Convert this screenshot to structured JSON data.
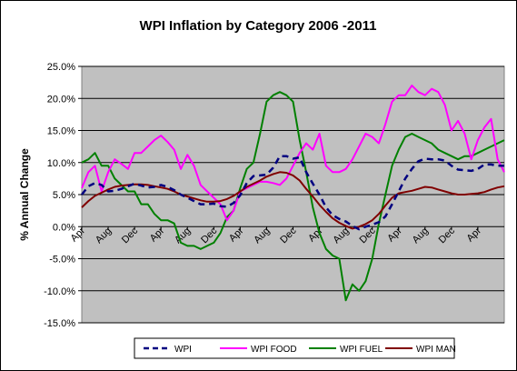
{
  "chart_data": {
    "type": "line",
    "title": "WPI Inflation by Category 2006 -2011",
    "ylabel": "% Annual Change",
    "xlabel": "",
    "ylim": [
      -15,
      25
    ],
    "y_ticks": [
      "-15.0%",
      "-10.0%",
      "-5.0%",
      "0.0%",
      "5.0%",
      "10.0%",
      "15.0%",
      "20.0%",
      "25.0%"
    ],
    "y_tick_values": [
      -15,
      -10,
      -5,
      0,
      5,
      10,
      15,
      20,
      25
    ],
    "x_tick_labels": [
      "Apr",
      "Aug",
      "Dec",
      "Apr",
      "Aug",
      "Dec",
      "Apr",
      "Aug",
      "Dec",
      "Apr",
      "Aug",
      "Dec",
      "Apr",
      "Aug",
      "Dec",
      "Apr"
    ],
    "grid": true,
    "legend_position": "bottom",
    "plot_background": "#c0c0c0",
    "series": [
      {
        "name": "WPI",
        "color": "#000080",
        "style": "dashed",
        "values": [
          5.0,
          6.3,
          6.8,
          6.5,
          5.5,
          5.6,
          5.9,
          6.3,
          6.7,
          6.4,
          6.1,
          6.2,
          6.5,
          6.2,
          5.7,
          5.0,
          4.5,
          4.0,
          3.5,
          3.5,
          3.6,
          3.2,
          3.1,
          3.7,
          4.9,
          6.8,
          7.9,
          8.0,
          8.1,
          9.2,
          11.0,
          11.0,
          10.6,
          10.8,
          8.5,
          6.7,
          5.0,
          3.0,
          1.8,
          1.2,
          0.8,
          0.1,
          -0.4,
          0.0,
          0.3,
          0.7,
          1.6,
          3.5,
          5.5,
          7.5,
          9.0,
          10.2,
          10.6,
          10.5,
          10.5,
          10.3,
          9.5,
          8.9,
          8.8,
          8.7,
          9.0,
          9.7,
          9.7,
          9.5,
          9.5
        ]
      },
      {
        "name": "WPI FOOD",
        "color": "#ff00ff",
        "style": "solid",
        "values": [
          6.0,
          8.5,
          9.5,
          5.5,
          8.5,
          10.5,
          9.8,
          9.0,
          11.5,
          11.5,
          12.5,
          13.5,
          14.2,
          13.2,
          12.0,
          9.0,
          11.2,
          9.5,
          6.5,
          5.5,
          4.5,
          3.5,
          1.0,
          2.5,
          5.5,
          6.0,
          6.5,
          7.0,
          7.0,
          6.8,
          6.5,
          7.5,
          9.5,
          11.5,
          13.0,
          12.0,
          14.5,
          9.5,
          8.5,
          8.5,
          9.0,
          10.5,
          12.5,
          14.5,
          14.0,
          13.0,
          16.0,
          19.5,
          20.5,
          20.5,
          22.0,
          21.0,
          20.5,
          21.5,
          21.0,
          19.0,
          15.0,
          16.5,
          14.5,
          10.5,
          13.5,
          15.5,
          16.8,
          10.5,
          8.5
        ]
      },
      {
        "name": "WPI FUEL",
        "color": "#008000",
        "style": "solid",
        "values": [
          10.0,
          10.5,
          11.5,
          9.5,
          9.5,
          7.5,
          6.5,
          5.5,
          5.5,
          3.5,
          3.5,
          2.0,
          1.0,
          1.0,
          0.5,
          -2.5,
          -3.0,
          -3.0,
          -3.5,
          -3.0,
          -2.5,
          -1.0,
          1.5,
          2.5,
          6.0,
          9.0,
          10.0,
          14.5,
          19.5,
          20.5,
          21.0,
          20.5,
          19.5,
          13.5,
          8.5,
          3.0,
          -1.0,
          -3.5,
          -4.5,
          -5.0,
          -11.5,
          -9.0,
          -10.0,
          -8.5,
          -5.0,
          0.5,
          5.0,
          9.5,
          12.0,
          14.0,
          14.5,
          14.0,
          13.5,
          13.0,
          12.0,
          11.5,
          11.0,
          10.5,
          11.0,
          11.0,
          11.5,
          12.0,
          12.5,
          13.0,
          13.5
        ]
      },
      {
        "name": "WPI MAN",
        "color": "#800000",
        "style": "solid",
        "values": [
          3.0,
          4.0,
          4.8,
          5.3,
          5.8,
          6.2,
          6.4,
          6.5,
          6.6,
          6.6,
          6.5,
          6.3,
          6.1,
          5.9,
          5.5,
          5.0,
          4.7,
          4.4,
          4.1,
          3.9,
          3.9,
          4.0,
          4.3,
          4.8,
          5.5,
          6.2,
          6.7,
          7.2,
          7.8,
          8.2,
          8.5,
          8.4,
          8.0,
          7.2,
          5.9,
          4.7,
          3.4,
          2.3,
          1.3,
          0.6,
          0.1,
          -0.3,
          0.0,
          0.4,
          1.0,
          2.0,
          3.3,
          4.5,
          5.2,
          5.4,
          5.6,
          5.9,
          6.2,
          6.1,
          5.8,
          5.5,
          5.2,
          5.0,
          5.0,
          5.1,
          5.2,
          5.4,
          5.8,
          6.1,
          6.3
        ]
      }
    ]
  }
}
